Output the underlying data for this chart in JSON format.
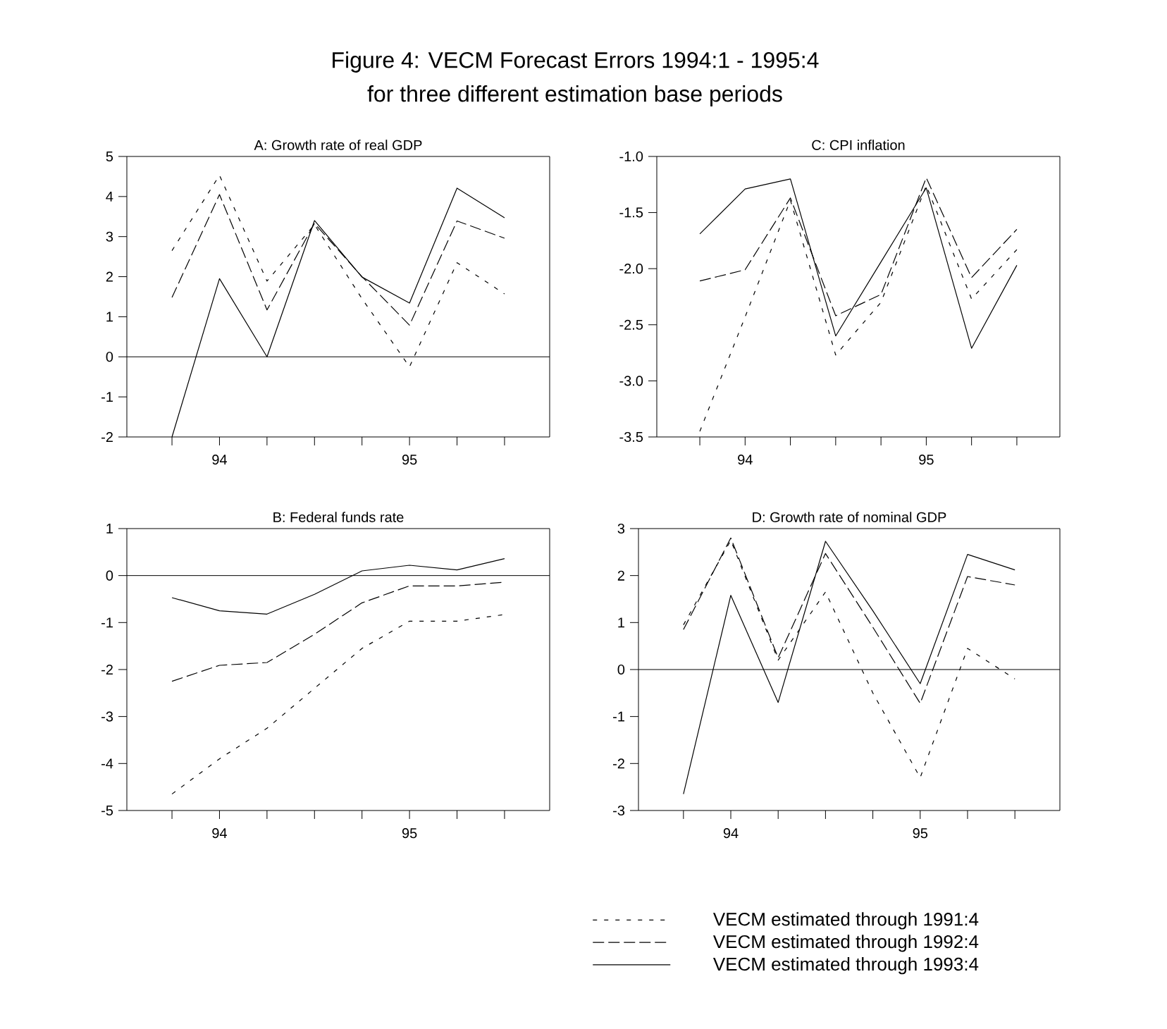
{
  "chart_data": [
    {
      "type": "line",
      "title": "A: Growth rate of real GDP",
      "annotations": [
        "Figure 4: VECM Forecast Errors 1994:1 - 1995:4",
        "for three different estimation base periods"
      ],
      "categories": [
        null,
        "94",
        null,
        null,
        null,
        "95",
        null,
        null
      ],
      "ylim": [
        -2,
        5
      ],
      "yticks": [
        -2,
        -1,
        0,
        1,
        2,
        3,
        4,
        5
      ],
      "ref_lines": [
        {
          "axis": "y",
          "value": 0,
          "color": "#000000"
        }
      ],
      "series": [
        {
          "color": "#000000",
          "line_style": "dotted",
          "values": [
            2.65,
            4.53,
            1.89,
            3.3,
            1.45,
            -0.25,
            2.35,
            1.57
          ]
        },
        {
          "color": "#000000",
          "line_style": "dashed",
          "values": [
            1.48,
            4.05,
            1.17,
            3.33,
            2.0,
            0.79,
            3.39,
            2.96
          ]
        },
        {
          "color": "#000000",
          "line_style": "solid",
          "values": [
            -2.0,
            1.95,
            0.0,
            3.4,
            1.99,
            1.34,
            4.21,
            3.47
          ]
        }
      ]
    },
    {
      "type": "line",
      "title": "C: CPI inflation",
      "categories": [
        null,
        "94",
        null,
        null,
        null,
        "95",
        null,
        null
      ],
      "ylim": [
        -3.5,
        -1.0
      ],
      "yticks": [
        -3.5,
        {
          "value": -3.0,
          "label": "-3.0"
        },
        -2.5,
        {
          "value": -2.0,
          "label": "-2.0"
        },
        -1.5,
        {
          "value": -1.0,
          "label": "-1.0"
        }
      ],
      "series": [
        {
          "color": "#000000",
          "line_style": "dotted",
          "values": [
            -3.45,
            -2.43,
            -1.39,
            -2.77,
            -2.3,
            -1.26,
            -2.27,
            -1.83
          ]
        },
        {
          "color": "#000000",
          "line_style": "dashed",
          "values": [
            -2.11,
            -2.01,
            -1.37,
            -2.42,
            -2.23,
            -1.19,
            -2.08,
            -1.65
          ]
        },
        {
          "color": "#000000",
          "line_style": "solid",
          "values": [
            -1.69,
            -1.29,
            -1.2,
            -2.6,
            -1.94,
            -1.28,
            -2.71,
            -1.97
          ]
        }
      ]
    },
    {
      "type": "line",
      "title": "B: Federal funds rate",
      "categories": [
        null,
        "94",
        null,
        null,
        null,
        "95",
        null,
        null
      ],
      "ylim": [
        -5,
        1
      ],
      "yticks": [
        -5,
        -4,
        -3,
        -2,
        -1,
        0,
        1
      ],
      "ref_lines": [
        {
          "axis": "y",
          "value": 0,
          "color": "#000000"
        }
      ],
      "series": [
        {
          "color": "#000000",
          "line_style": "dotted",
          "values": [
            -4.65,
            -3.9,
            -3.25,
            -2.4,
            -1.55,
            -0.97,
            -0.97,
            -0.83
          ]
        },
        {
          "color": "#000000",
          "line_style": "dashed",
          "values": [
            -2.25,
            -1.91,
            -1.85,
            -1.25,
            -0.58,
            -0.22,
            -0.22,
            -0.14
          ]
        },
        {
          "color": "#000000",
          "line_style": "solid",
          "values": [
            -0.47,
            -0.75,
            -0.82,
            -0.4,
            0.1,
            0.22,
            0.12,
            0.36
          ]
        }
      ]
    },
    {
      "type": "line",
      "title": "D: Growth rate of nominal GDP",
      "legend": "bottom",
      "categories": [
        null,
        "94",
        null,
        null,
        null,
        "95",
        null,
        null
      ],
      "ylim": [
        -3,
        3
      ],
      "yticks": [
        -3,
        -2,
        -1,
        0,
        1,
        2,
        3
      ],
      "ref_lines": [
        {
          "axis": "y",
          "value": 0,
          "color": "#000000"
        }
      ],
      "series": [
        {
          "name": "VECM estimated through 1991:4",
          "color": "#000000",
          "line_style": "dotted",
          "values": [
            0.95,
            2.75,
            0.2,
            1.65,
            -0.5,
            -2.3,
            0.45,
            -0.2
          ]
        },
        {
          "name": "VECM estimated through 1992:4",
          "color": "#000000",
          "line_style": "dashed",
          "values": [
            0.85,
            2.8,
            0.25,
            2.47,
            0.9,
            -0.72,
            1.98,
            1.8
          ]
        },
        {
          "name": "VECM estimated through 1993:4",
          "color": "#000000",
          "line_style": "solid",
          "values": [
            -2.65,
            1.58,
            -0.7,
            2.73,
            1.25,
            -0.3,
            2.45,
            2.12
          ]
        }
      ]
    }
  ]
}
